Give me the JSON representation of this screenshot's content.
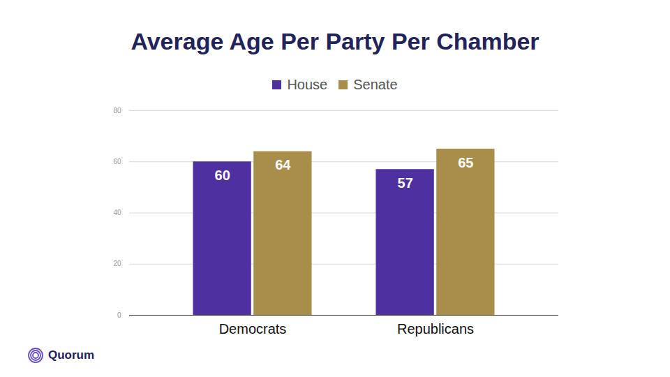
{
  "chart_data": {
    "type": "bar",
    "title": "Average Age Per Party Per Chamber",
    "caption": "Quorum",
    "categories": [
      "Democrats",
      "Republicans"
    ],
    "series": [
      {
        "name": "House",
        "color": "#4f30a0",
        "values": [
          60,
          57
        ]
      },
      {
        "name": "Senate",
        "color": "#a88d4b",
        "values": [
          64,
          65
        ]
      }
    ],
    "ylim": [
      0,
      80
    ],
    "yticks": [
      0,
      20,
      40,
      60,
      80
    ],
    "grid": true,
    "legend": "top",
    "data_labels": true
  }
}
